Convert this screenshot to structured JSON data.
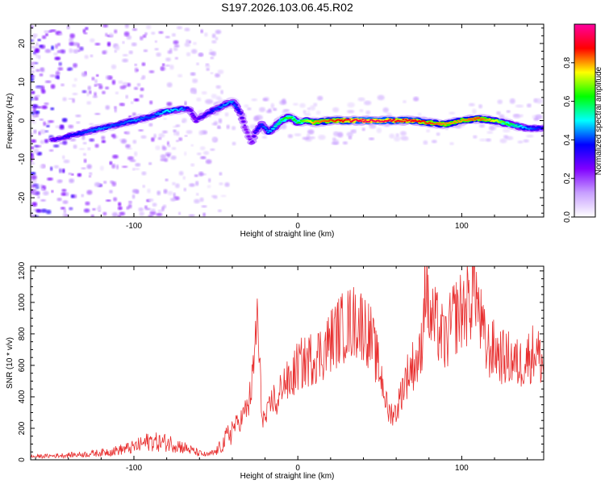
{
  "chart_data": [
    {
      "type": "heatmap",
      "title": "S197.2026.103.06.45.R02",
      "xlabel": "Height of straight line (km)",
      "ylabel": "Frequency (Hz)",
      "xlim": [
        -163,
        150
      ],
      "ylim": [
        -25,
        25
      ],
      "xticks": [
        -100,
        0,
        100
      ],
      "xtick_labels": [
        "-100",
        "0",
        "100"
      ],
      "yticks": [
        20,
        10,
        0,
        -10,
        -20
      ],
      "ytick_labels": [
        "20",
        "10",
        "0",
        "-10",
        "-20"
      ],
      "colorbar": {
        "label": "Normalized spectral amplitude",
        "ticks": [
          0.0,
          0.2,
          0.4,
          0.6,
          0.8
        ],
        "tick_labels": [
          "0.0",
          "0.2",
          "0.4",
          "0.6",
          "0.8"
        ],
        "range": [
          0,
          1
        ],
        "colormap": [
          "#ffffff",
          "#c8a0ff",
          "#8000ff",
          "#0000ff",
          "#00ffff",
          "#00ff00",
          "#ffff00",
          "#ff0000",
          "#ff00a0"
        ]
      },
      "ridge_frequency_track": {
        "x": [
          -150,
          -140,
          -130,
          -120,
          -110,
          -100,
          -90,
          -80,
          -70,
          -66,
          -62,
          -55,
          -45,
          -40,
          -35,
          -32,
          -28,
          -26,
          -22,
          -18,
          -15,
          -10,
          -5,
          0,
          5,
          10,
          20,
          30,
          40,
          50,
          60,
          70,
          80,
          90,
          100,
          110,
          120,
          130,
          140,
          150
        ],
        "y": [
          -5,
          -4,
          -3,
          -2,
          -1,
          0,
          1,
          2.5,
          3,
          3,
          0,
          2,
          4,
          5,
          2,
          -2,
          -6,
          -3,
          -1,
          -3,
          -2,
          0,
          1,
          -0.5,
          0,
          -0.5,
          0,
          0,
          0,
          0,
          0,
          0,
          -0.5,
          -1,
          0,
          0.5,
          0,
          -1,
          -2,
          -2
        ],
        "amplitude": [
          0.3,
          0.35,
          0.4,
          0.45,
          0.4,
          0.45,
          0.4,
          0.5,
          0.45,
          0.3,
          0.3,
          0.35,
          0.45,
          0.45,
          0.35,
          0.25,
          0.25,
          0.35,
          0.4,
          0.45,
          0.5,
          0.6,
          0.65,
          0.6,
          0.7,
          0.8,
          0.85,
          0.9,
          0.95,
          0.95,
          0.9,
          0.9,
          0.85,
          0.8,
          0.8,
          0.85,
          0.75,
          0.6,
          0.45,
          0.35
        ]
      }
    },
    {
      "type": "line",
      "xlabel": "Height of straight line (km)",
      "ylabel": "SNR (10 * v/v)",
      "xlim": [
        -163,
        150
      ],
      "ylim": [
        0,
        1230
      ],
      "xticks": [
        -100,
        0,
        100
      ],
      "xtick_labels": [
        "-100",
        "0",
        "100"
      ],
      "yticks": [
        0,
        200,
        400,
        600,
        800,
        1000,
        1200
      ],
      "ytick_labels": [
        "0",
        "200",
        "400",
        "600",
        "800",
        "1000",
        "1200"
      ],
      "color": "#e83030",
      "series": [
        {
          "name": "SNR",
          "x": [
            -163,
            -150,
            -140,
            -130,
            -120,
            -110,
            -100,
            -95,
            -90,
            -85,
            -80,
            -75,
            -70,
            -65,
            -60,
            -55,
            -50,
            -45,
            -40,
            -35,
            -30,
            -27,
            -25,
            -22,
            -20,
            -18,
            -15,
            -12,
            -10,
            -8,
            -5,
            0,
            5,
            10,
            15,
            20,
            25,
            30,
            35,
            40,
            45,
            50,
            52,
            55,
            60,
            65,
            70,
            75,
            78,
            80,
            85,
            90,
            95,
            100,
            105,
            108,
            110,
            115,
            120,
            125,
            130,
            135,
            140,
            145,
            150
          ],
          "y": [
            20,
            25,
            30,
            35,
            45,
            60,
            80,
            100,
            120,
            110,
            110,
            100,
            80,
            60,
            40,
            30,
            50,
            110,
            200,
            250,
            350,
            550,
            950,
            300,
            250,
            300,
            400,
            330,
            500,
            500,
            480,
            600,
            620,
            660,
            680,
            760,
            820,
            860,
            880,
            860,
            760,
            560,
            480,
            300,
            300,
            500,
            600,
            650,
            1200,
            900,
            850,
            740,
            900,
            950,
            1000,
            1180,
            950,
            700,
            700,
            650,
            640,
            600,
            650,
            700,
            600
          ]
        }
      ]
    }
  ]
}
